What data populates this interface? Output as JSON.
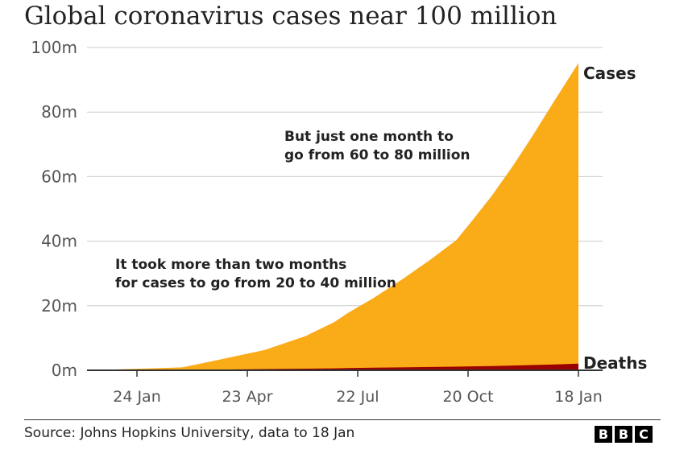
{
  "title": "Global coronavirus cases near 100 million",
  "source": "Source: Johns Hopkins University, data to 18 Jan",
  "logo": [
    "B",
    "B",
    "C"
  ],
  "colors": {
    "cases": "#FAAB18",
    "deaths": "#990000",
    "grid": "#cccccc",
    "text": "#222222",
    "tick": "#555555"
  },
  "chart_data": {
    "type": "area",
    "xlabel": "",
    "ylabel": "",
    "ylim": [
      0,
      100
    ],
    "y_unit": "million",
    "grid": true,
    "x_ticks": [
      "24 Jan",
      "23 Apr",
      "22 Jul",
      "20 Oct",
      "18 Jan"
    ],
    "y_ticks": [
      "0m",
      "20m",
      "40m",
      "60m",
      "80m",
      "100m"
    ],
    "x": [
      "22 Jan",
      "24 Jan",
      "1 Apr",
      "23 Apr",
      "1 Jun",
      "1 Jul",
      "22 Jul",
      "1 Aug",
      "20 Aug",
      "10 Sep",
      "1 Oct",
      "20 Oct",
      "1 Nov",
      "15 Nov",
      "1 Dec",
      "15 Dec",
      "1 Jan",
      "18 Jan"
    ],
    "series": [
      {
        "name": "Cases",
        "values": [
          0.0,
          0.0,
          0.9,
          2.8,
          6.3,
          10.6,
          14.9,
          17.7,
          22.4,
          28.1,
          34.3,
          40.3,
          46.5,
          54.0,
          63.5,
          72.5,
          84.0,
          95.2
        ]
      },
      {
        "name": "Deaths",
        "values": [
          0.0,
          0.0,
          0.05,
          0.19,
          0.38,
          0.51,
          0.61,
          0.68,
          0.79,
          0.91,
          1.03,
          1.12,
          1.21,
          1.3,
          1.46,
          1.62,
          1.83,
          2.04
        ]
      }
    ],
    "annotations": [
      "But just one month to go from 60 to 80 million",
      "It took more than two months for cases to go from 20 to 40 million"
    ]
  }
}
